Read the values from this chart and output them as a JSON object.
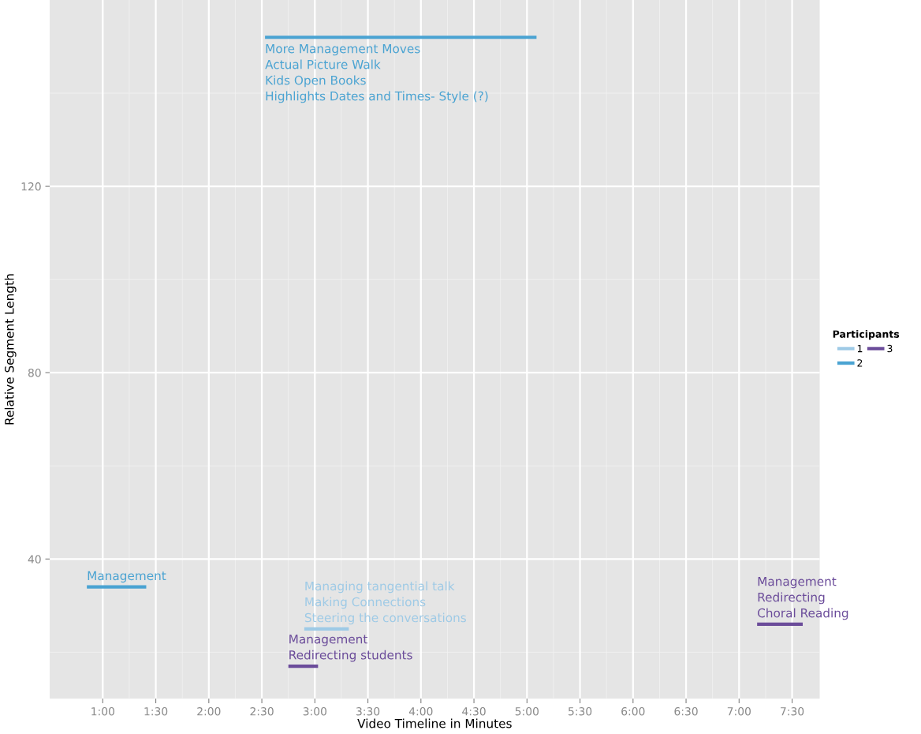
{
  "chart_data": {
    "type": "line",
    "xlabel": "Video Timeline in Minutes",
    "ylabel": "Relative Segment Length",
    "legend_title": "Participants",
    "series": [
      {
        "name": "1",
        "color": "#9ecae6",
        "x": [
          2.9,
          3.32
        ],
        "values": [
          25,
          25
        ]
      },
      {
        "name": "2",
        "color": "#4aa3d2",
        "x": [
          0.85,
          1.41,
          null,
          2.53,
          5.09
        ],
        "values": [
          34,
          34,
          null,
          152,
          152
        ]
      },
      {
        "name": "3",
        "color": "#6b4c9a",
        "x": [
          2.75,
          3.03,
          null,
          7.17,
          7.6
        ],
        "values": [
          17,
          17,
          null,
          26,
          26
        ]
      }
    ],
    "annotations": [
      {
        "text": "Management",
        "x": 0.85,
        "y": 34
      },
      {
        "text": "More Management Moves\nActual Picture Walk\nKids Open Books\nHighlights Dates and Times- Style (?)",
        "x": 2.53,
        "y": 152
      },
      {
        "text": "Managing tangential talk\nMaking Connections\nSteering the conversations",
        "x": 2.9,
        "y": 25
      },
      {
        "text": "Management\nRedirecting students",
        "x": 2.75,
        "y": 17
      },
      {
        "text": "Management\nRedirecting\nChoral Reading",
        "x": 7.17,
        "y": 26
      }
    ],
    "xlim": [
      0.5,
      7.76
    ],
    "ylim": [
      10,
      160
    ],
    "xticks": [
      {
        "value": 1,
        "label": "1:00"
      },
      {
        "value": 1.5,
        "label": "1:30"
      },
      {
        "value": 2,
        "label": "2:00"
      },
      {
        "value": 2.5,
        "label": "2:30"
      },
      {
        "value": 3,
        "label": "3:00"
      },
      {
        "value": 3.5,
        "label": "3:30"
      },
      {
        "value": 4,
        "label": "4:00"
      },
      {
        "value": 4.5,
        "label": "4:30"
      },
      {
        "value": 5,
        "label": "5:00"
      },
      {
        "value": 5.5,
        "label": "5:30"
      },
      {
        "value": 6,
        "label": "6:00"
      },
      {
        "value": 6.5,
        "label": "6:30"
      },
      {
        "value": 7,
        "label": "7:00"
      },
      {
        "value": 7.5,
        "label": "7:30"
      }
    ],
    "yticks": [
      40,
      80,
      120
    ],
    "grid": true,
    "legend": "right",
    "marker": "none",
    "line_style": "solid"
  }
}
